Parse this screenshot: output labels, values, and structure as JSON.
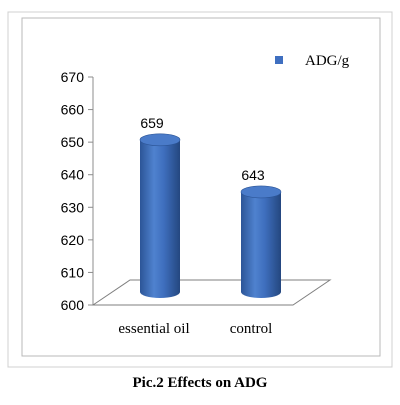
{
  "chart_data": {
    "type": "bar",
    "style": "3d-cylinder",
    "categories": [
      "essential oil",
      "control"
    ],
    "series": [
      {
        "name": "ADG/g",
        "values": [
          659,
          643
        ],
        "color": "#3f6fc0"
      }
    ],
    "data_labels": [
      "659",
      "643"
    ],
    "ylim": [
      600,
      670
    ],
    "yticks": [
      "600",
      "610",
      "620",
      "630",
      "640",
      "650",
      "660",
      "670"
    ],
    "ytick_values": [
      600,
      610,
      620,
      630,
      640,
      650,
      660,
      670
    ],
    "legend_position": "top-right",
    "grid": false,
    "caption": "Pic.2  Effects on ADG"
  },
  "colors": {
    "bar_fill": "#3f6fc0",
    "bar_top": "#4a7bc9",
    "chart_border": "#b9b9b9",
    "floor_stroke": "#7f7f7f"
  }
}
